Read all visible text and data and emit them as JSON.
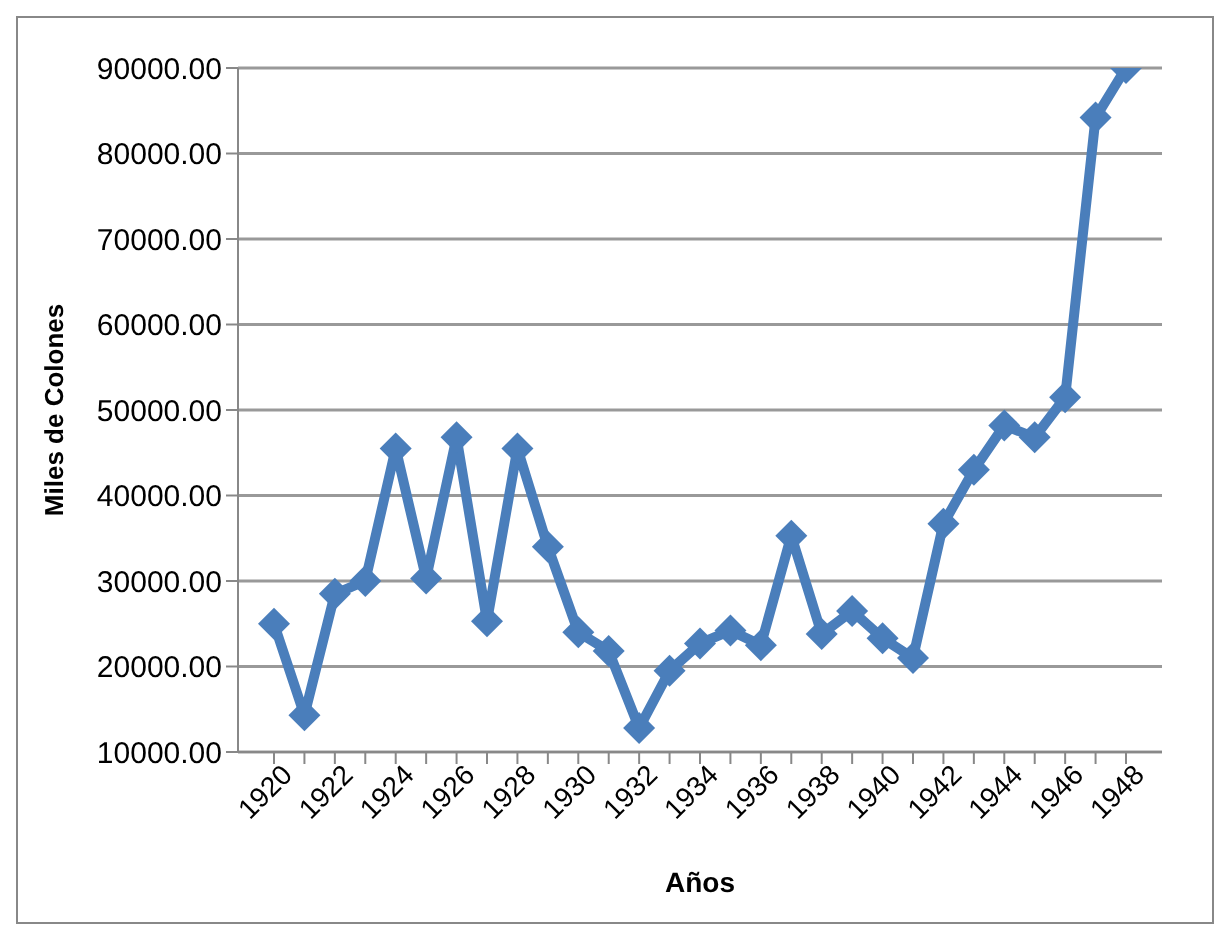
{
  "chart_data": {
    "type": "line",
    "xlabel": "Años",
    "ylabel": "Miles de Colones",
    "categories": [
      "1920",
      null,
      "1922",
      null,
      "1924",
      null,
      "1926",
      null,
      "1928",
      null,
      "1930",
      null,
      "1932",
      null,
      "1934",
      null,
      "1936",
      null,
      "1938",
      null,
      "1940",
      null,
      "1942",
      null,
      "1944",
      null,
      "1946",
      null,
      "1948"
    ],
    "series": [
      {
        "color": "#4a7ebb",
        "values": [
          25000,
          14300,
          28500,
          30000,
          45500,
          30300,
          46800,
          25300,
          45500,
          34000,
          24000,
          21800,
          12800,
          19500,
          22700,
          24200,
          22500,
          35300,
          23800,
          26500,
          23300,
          21000,
          36700,
          43000,
          48200,
          46800,
          51500,
          84200,
          90000
        ]
      }
    ],
    "ylim": [
      10000,
      90000
    ],
    "yticks": [
      {
        "value": 10000,
        "label": "10000.00"
      },
      {
        "value": 20000,
        "label": "20000.00"
      },
      {
        "value": 30000,
        "label": "30000.00"
      },
      {
        "value": 40000,
        "label": "40000.00"
      },
      {
        "value": 50000,
        "label": "50000.00"
      },
      {
        "value": 60000,
        "label": "60000.00"
      },
      {
        "value": 70000,
        "label": "70000.00"
      },
      {
        "value": 80000,
        "label": "80000.00"
      },
      {
        "value": 90000,
        "label": "90000.00"
      }
    ],
    "grid": "y",
    "marker": "diamond",
    "line_style": "solid"
  }
}
